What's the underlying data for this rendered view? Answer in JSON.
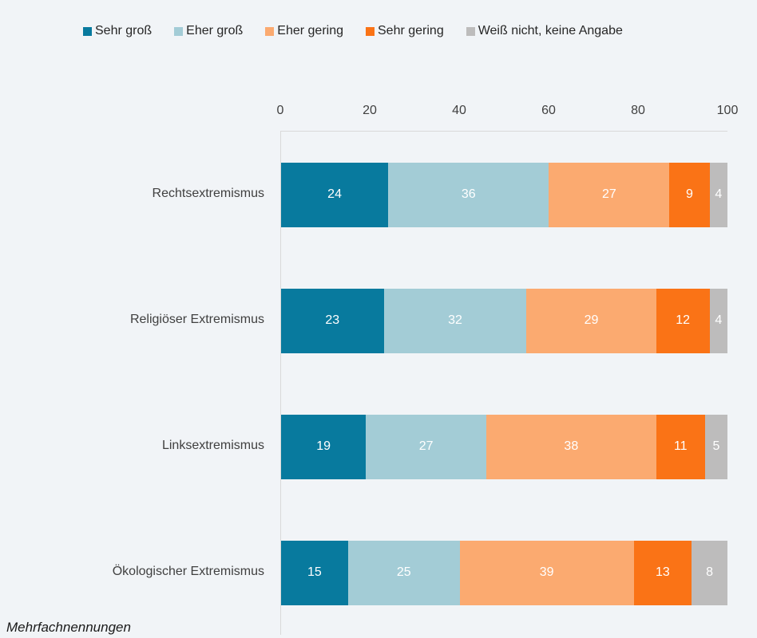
{
  "chart_data": {
    "type": "bar",
    "orientation": "horizontal",
    "stacked": true,
    "title": "",
    "categories": [
      "Rechtsextremismus",
      "Religiöser Extremismus",
      "Linksextremismus",
      "Ökologischer Extremismus"
    ],
    "series": [
      {
        "name": "Sehr groß",
        "color": "#087a9e",
        "values": [
          24,
          23,
          19,
          15
        ]
      },
      {
        "name": "Eher groß",
        "color": "#a3ccd6",
        "values": [
          36,
          32,
          27,
          25
        ]
      },
      {
        "name": "Eher gering",
        "color": "#fbaa70",
        "values": [
          27,
          29,
          38,
          39
        ]
      },
      {
        "name": "Sehr gering",
        "color": "#fa7316",
        "values": [
          9,
          12,
          11,
          13
        ]
      },
      {
        "name": "Weiß nicht, keine Angabe",
        "color": "#bdbcbc",
        "values": [
          4,
          4,
          5,
          8
        ]
      }
    ],
    "xticks": [
      0,
      20,
      40,
      60,
      80,
      100
    ],
    "xlim": [
      0,
      100
    ],
    "legend_position": "top",
    "grid": false,
    "value_labels": "inside-white"
  },
  "footer": {
    "note": "Mehrfachnennungen"
  },
  "colors": {
    "background": "#f1f4f7",
    "axis_line": "#d9d9d9",
    "tick_text": "#404040",
    "category_text": "#404040",
    "legend_text": "#262626",
    "value_text": "#ffffff"
  }
}
